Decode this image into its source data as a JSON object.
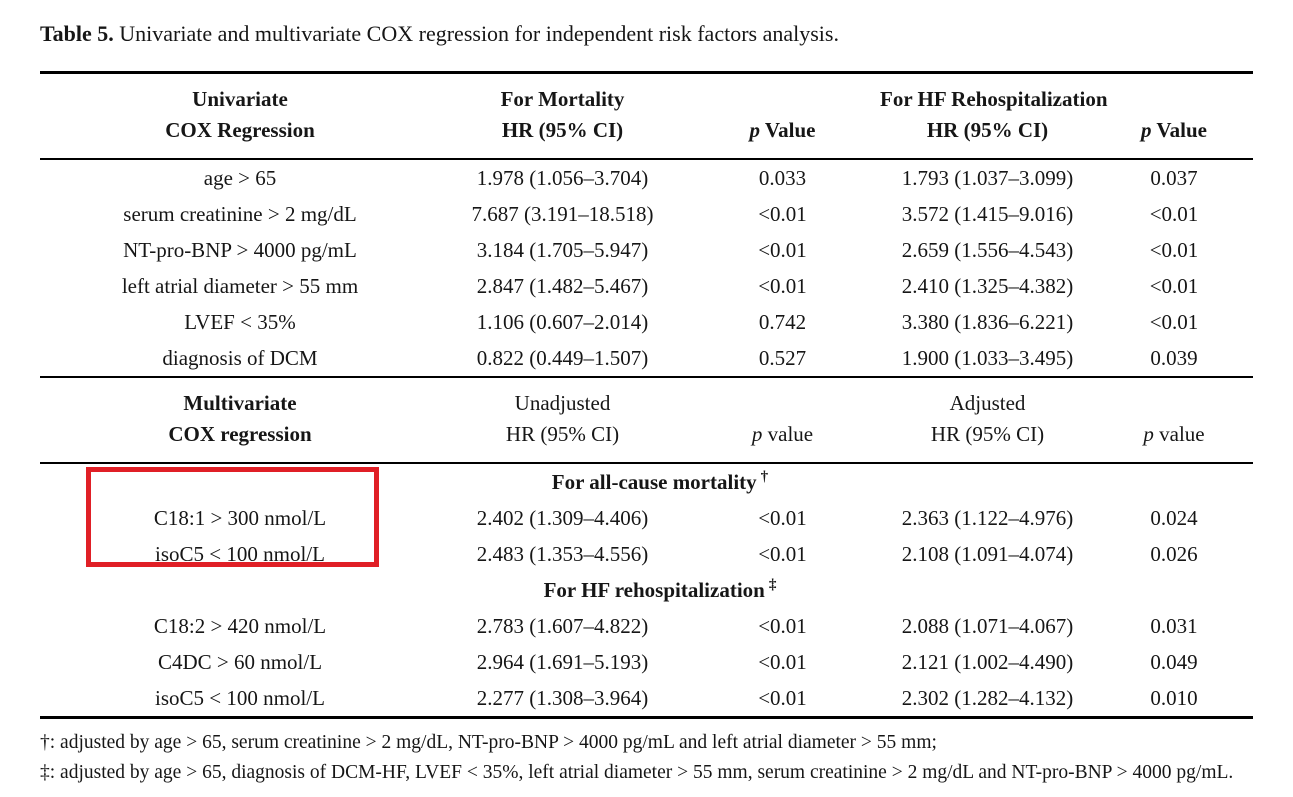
{
  "title": {
    "label": "Table 5.",
    "text": " Univariate and multivariate COX regression for independent risk factors analysis."
  },
  "colors": {
    "rule": "#000000",
    "text": "#161616",
    "highlight_box": "#e01f26"
  },
  "univariate": {
    "header": {
      "col_title_line1": "Univariate",
      "col_title_line2": "COX Regression",
      "mortality_group": "For Mortality",
      "rehosp_group": "For HF Rehospitalization",
      "hr_label": "HR (95% CI)",
      "p_italic": "p",
      "p_rest": " Value"
    },
    "rows": [
      {
        "label": "age > 65",
        "mortality_hr": "1.978 (1.056–3.704)",
        "mortality_p": "0.033",
        "rehosp_hr": "1.793 (1.037–3.099)",
        "rehosp_p": "0.037"
      },
      {
        "label": "serum creatinine > 2 mg/dL",
        "mortality_hr": "7.687 (3.191–18.518)",
        "mortality_p": "<0.01",
        "rehosp_hr": "3.572 (1.415–9.016)",
        "rehosp_p": "<0.01"
      },
      {
        "label": "NT-pro-BNP > 4000 pg/mL",
        "mortality_hr": "3.184 (1.705–5.947)",
        "mortality_p": "<0.01",
        "rehosp_hr": "2.659 (1.556–4.543)",
        "rehosp_p": "<0.01"
      },
      {
        "label": "left atrial diameter > 55 mm",
        "mortality_hr": "2.847 (1.482–5.467)",
        "mortality_p": "<0.01",
        "rehosp_hr": "2.410 (1.325–4.382)",
        "rehosp_p": "<0.01"
      },
      {
        "label": "LVEF < 35%",
        "mortality_hr": "1.106 (0.607–2.014)",
        "mortality_p": "0.742",
        "rehosp_hr": "3.380 (1.836–6.221)",
        "rehosp_p": "<0.01"
      },
      {
        "label": "diagnosis of DCM",
        "mortality_hr": "0.822 (0.449–1.507)",
        "mortality_p": "0.527",
        "rehosp_hr": "1.900 (1.033–3.495)",
        "rehosp_p": "0.039"
      }
    ]
  },
  "multivariate": {
    "header": {
      "col_title_line1": "Multivariate",
      "col_title_line2": "COX regression",
      "unadjusted_group": "Unadjusted",
      "adjusted_group": "Adjusted",
      "hr_label": "HR (95% CI)",
      "p_italic": "p",
      "p_rest": " value"
    },
    "mortality_section": {
      "heading": "For all-cause mortality",
      "marker": "†",
      "rows": [
        {
          "label": "C18:1 > 300 nmol/L",
          "unadjusted_hr": "2.402 (1.309–4.406)",
          "unadjusted_p": "<0.01",
          "adjusted_hr": "2.363 (1.122–4.976)",
          "adjusted_p": "0.024"
        },
        {
          "label": "isoC5 < 100 nmol/L",
          "unadjusted_hr": "2.483 (1.353–4.556)",
          "unadjusted_p": "<0.01",
          "adjusted_hr": "2.108 (1.091–4.074)",
          "adjusted_p": "0.026"
        }
      ]
    },
    "rehosp_section": {
      "heading": "For HF rehospitalization",
      "marker": "‡",
      "rows": [
        {
          "label": "C18:2 > 420 nmol/L",
          "unadjusted_hr": "2.783 (1.607–4.822)",
          "unadjusted_p": "<0.01",
          "adjusted_hr": "2.088 (1.071–4.067)",
          "adjusted_p": "0.031"
        },
        {
          "label": "C4DC > 60 nmol/L",
          "unadjusted_hr": "2.964 (1.691–5.193)",
          "unadjusted_p": "<0.01",
          "adjusted_hr": "2.121 (1.002–4.490)",
          "adjusted_p": "0.049"
        },
        {
          "label": "isoC5 < 100 nmol/L",
          "unadjusted_hr": "2.277 (1.308–3.964)",
          "unadjusted_p": "<0.01",
          "adjusted_hr": "2.302 (1.282–4.132)",
          "adjusted_p": "0.010"
        }
      ]
    }
  },
  "footnotes": [
    "†: adjusted by age > 65, serum creatinine > 2 mg/dL, NT-pro-BNP > 4000 pg/mL and left atrial diameter > 55 mm;",
    "‡: adjusted by age > 65, diagnosis of DCM-HF, LVEF < 35%, left atrial diameter > 55 mm, serum creatinine > 2 mg/dL and NT-pro-BNP > 4000 pg/mL."
  ]
}
